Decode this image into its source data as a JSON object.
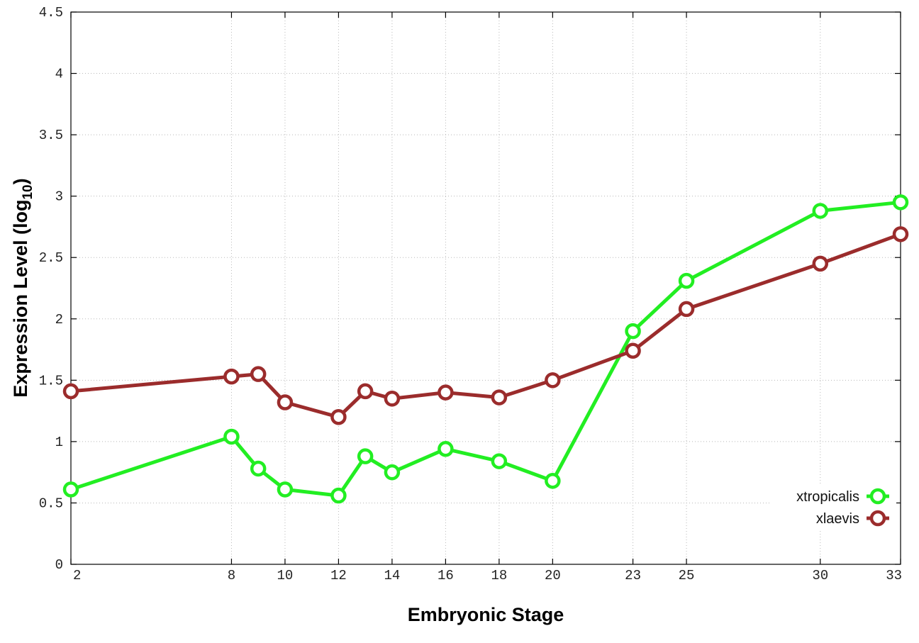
{
  "chart_data": {
    "type": "line",
    "title": "",
    "xlabel": "Embryonic Stage",
    "ylabel_main": "Expression Level (log",
    "ylabel_sub": "10",
    "ylabel_close": ")",
    "x_ticks": [
      2,
      8,
      10,
      12,
      14,
      16,
      18,
      20,
      23,
      25,
      30,
      33
    ],
    "y_ticks": [
      "0",
      "0.5",
      "1",
      "1.5",
      "2",
      "2.5",
      "3",
      "3.5",
      "4",
      "4.5"
    ],
    "xlim": [
      2,
      33
    ],
    "ylim": [
      0,
      4.5
    ],
    "grid": true,
    "legend_position": "bottom-right",
    "series": [
      {
        "name": "xtropicalis",
        "color": "#22ee22",
        "x": [
          2,
          8,
          9,
          10,
          12,
          13,
          14,
          16,
          18,
          20,
          23,
          25,
          30,
          33
        ],
        "y": [
          0.61,
          1.04,
          0.78,
          0.61,
          0.56,
          0.88,
          0.75,
          0.94,
          0.84,
          0.68,
          1.9,
          2.31,
          2.88,
          2.95
        ]
      },
      {
        "name": "xlaevis",
        "color": "#9b2c2c",
        "x": [
          2,
          8,
          9,
          10,
          12,
          13,
          14,
          16,
          18,
          20,
          23,
          25,
          30,
          33
        ],
        "y": [
          1.41,
          1.53,
          1.55,
          1.32,
          1.2,
          1.41,
          1.35,
          1.4,
          1.36,
          1.5,
          1.74,
          2.08,
          2.45,
          2.69
        ]
      }
    ]
  }
}
